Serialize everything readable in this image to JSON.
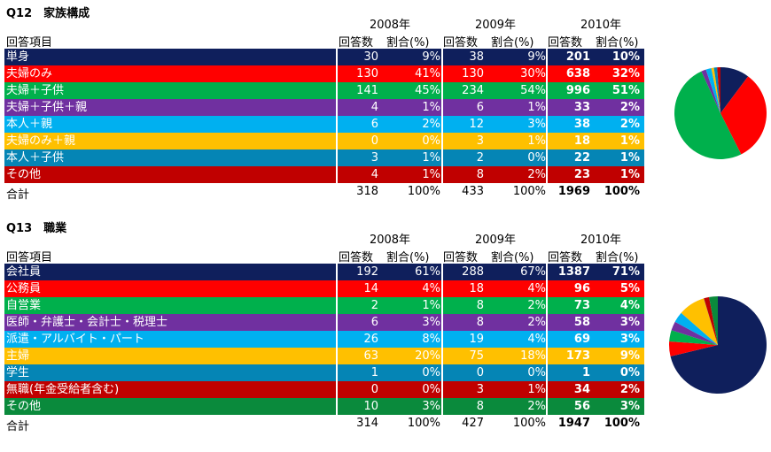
{
  "sections": [
    {
      "title": "Q12　家族構成",
      "years": [
        "2008年",
        "2009年",
        "2010年"
      ],
      "item_header": "回答項目",
      "count_header": "回答数",
      "pct_header": "割合(%)",
      "rows": [
        {
          "label": "単身",
          "color": "#0f1f5c",
          "v": [
            "30",
            "9%",
            "38",
            "9%",
            "201",
            "10%"
          ],
          "n": 201
        },
        {
          "label": "夫婦のみ",
          "color": "#ff0000",
          "v": [
            "130",
            "41%",
            "130",
            "30%",
            "638",
            "32%"
          ],
          "n": 638
        },
        {
          "label": "夫婦＋子供",
          "color": "#00b04c",
          "v": [
            "141",
            "45%",
            "234",
            "54%",
            "996",
            "51%"
          ],
          "n": 996
        },
        {
          "label": "夫婦＋子供＋親",
          "color": "#7030a0",
          "v": [
            "4",
            "1%",
            "6",
            "1%",
            "33",
            "2%"
          ],
          "n": 33
        },
        {
          "label": "本人＋親",
          "color": "#00b0f0",
          "v": [
            "6",
            "2%",
            "12",
            "3%",
            "38",
            "2%"
          ],
          "n": 38
        },
        {
          "label": "夫婦のみ＋親",
          "color": "#ffc000",
          "v": [
            "0",
            "0%",
            "3",
            "1%",
            "18",
            "1%"
          ],
          "n": 18
        },
        {
          "label": "本人＋子供",
          "color": "#0585b5",
          "v": [
            "3",
            "1%",
            "2",
            "0%",
            "22",
            "1%"
          ],
          "n": 22
        },
        {
          "label": "その他",
          "color": "#c00000",
          "v": [
            "4",
            "1%",
            "8",
            "2%",
            "23",
            "1%"
          ],
          "n": 23
        }
      ],
      "total": {
        "label": "合計",
        "v": [
          "318",
          "100%",
          "433",
          "100%",
          "1969",
          "100%"
        ]
      }
    },
    {
      "title": "Q13　職業",
      "years": [
        "2008年",
        "2009年",
        "2010年"
      ],
      "item_header": "回答項目",
      "count_header": "回答数",
      "pct_header": "割合(%)",
      "rows": [
        {
          "label": "会社員",
          "color": "#0f1f5c",
          "v": [
            "192",
            "61%",
            "288",
            "67%",
            "1387",
            "71%"
          ],
          "n": 1387
        },
        {
          "label": "公務員",
          "color": "#ff0000",
          "v": [
            "14",
            "4%",
            "18",
            "4%",
            "96",
            "5%"
          ],
          "n": 96
        },
        {
          "label": "自営業",
          "color": "#00b04c",
          "v": [
            "2",
            "1%",
            "8",
            "2%",
            "73",
            "4%"
          ],
          "n": 73
        },
        {
          "label": "医師・弁護士・会計士・税理士",
          "color": "#7030a0",
          "v": [
            "6",
            "3%",
            "8",
            "2%",
            "58",
            "3%"
          ],
          "n": 58
        },
        {
          "label": "派遣・アルバイト・パート",
          "color": "#00b0f0",
          "v": [
            "26",
            "8%",
            "19",
            "4%",
            "69",
            "3%"
          ],
          "n": 69
        },
        {
          "label": "主婦",
          "color": "#ffc000",
          "v": [
            "63",
            "20%",
            "75",
            "18%",
            "173",
            "9%"
          ],
          "n": 173
        },
        {
          "label": "学生",
          "color": "#0585b5",
          "v": [
            "1",
            "0%",
            "0",
            "0%",
            "1",
            "0%"
          ],
          "n": 1
        },
        {
          "label": "無職(年金受給者含む)",
          "color": "#c00000",
          "v": [
            "0",
            "0%",
            "3",
            "1%",
            "34",
            "2%"
          ],
          "n": 34
        },
        {
          "label": "その他",
          "color": "#0a8a3c",
          "v": [
            "10",
            "3%",
            "8",
            "2%",
            "56",
            "3%"
          ],
          "n": 56
        }
      ],
      "total": {
        "label": "合計",
        "v": [
          "314",
          "100%",
          "427",
          "100%",
          "1947",
          "100%"
        ]
      }
    }
  ]
}
